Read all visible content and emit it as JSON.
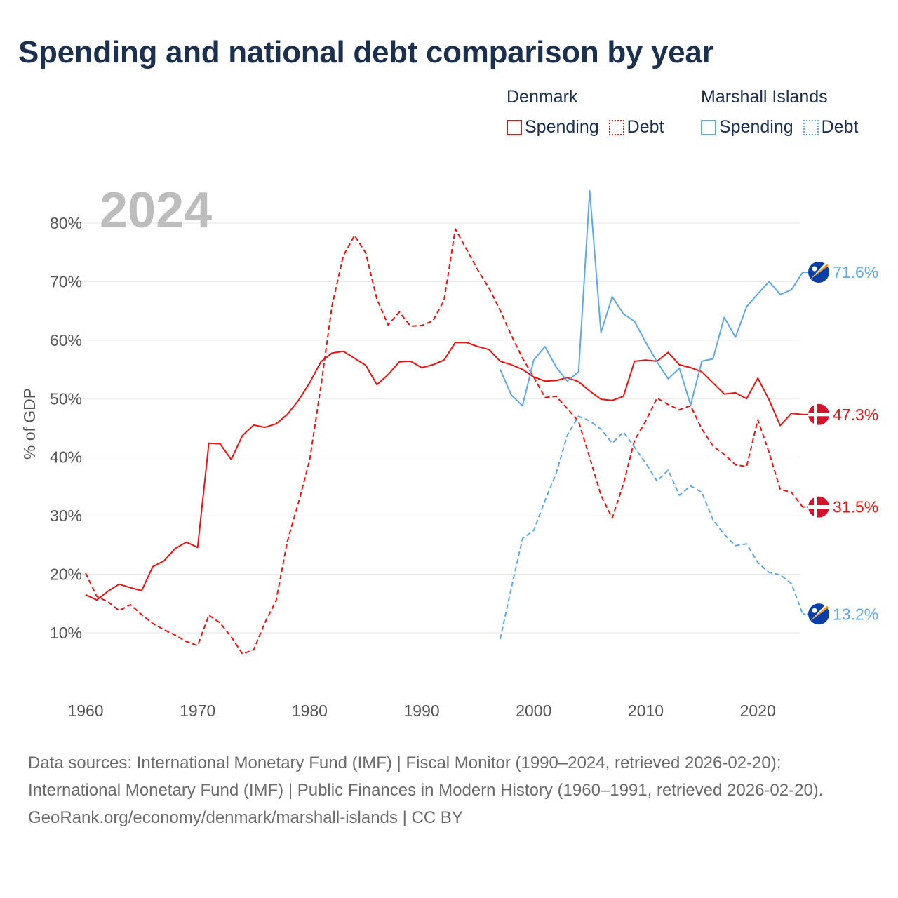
{
  "title": "Spending and national debt comparison by year",
  "legend": [
    {
      "country": "Denmark",
      "items": [
        {
          "label": "Spending",
          "style": "solid"
        },
        {
          "label": "Debt",
          "style": "dashed"
        }
      ],
      "color": "#ee1111"
    },
    {
      "country": "Marshall Islands",
      "items": [
        {
          "label": "Spending",
          "style": "solid"
        },
        {
          "label": "Debt",
          "style": "dashed"
        }
      ],
      "color": "#5ea8e8"
    }
  ],
  "year_label": "2024",
  "footer": {
    "sources": "Data sources: International Monetary Fund (IMF) | Fiscal Monitor (1990–2024, retrieved 2026-02-20); International Monetary Fund (IMF) | Public Finances in Modern History (1960–1991, retrieved 2026-02-20).",
    "credit": "GeoRank.org/economy/denmark/marshall-islands | CC BY"
  },
  "chart_data": {
    "type": "line",
    "title": "Spending and national debt comparison by year",
    "xlabel": "",
    "ylabel": "% of GDP",
    "xlim": [
      1960,
      2024
    ],
    "ylim": [
      0,
      85
    ],
    "x_ticks": [
      1960,
      1970,
      1980,
      1990,
      2000,
      2010,
      2020
    ],
    "y_ticks": [
      10,
      20,
      30,
      40,
      50,
      60,
      70,
      80
    ],
    "y_tick_labels": [
      "10%",
      "20%",
      "30%",
      "40%",
      "50%",
      "60%",
      "70%",
      "80%"
    ],
    "grid": true,
    "series": [
      {
        "name": "Denmark Spending",
        "color": "#ee1111",
        "dash": false,
        "flag": "denmark",
        "end_label": "47.3%",
        "start": 1960,
        "values": [
          16.5,
          15.6,
          17.1,
          18.3,
          17.7,
          17.2,
          21.3,
          22.3,
          24.4,
          25.5,
          24.6,
          42.4,
          42.3,
          39.6,
          43.7,
          45.5,
          45.1,
          45.7,
          47.3,
          49.7,
          52.7,
          56.3,
          57.8,
          58.1,
          56.9,
          55.7,
          52.4,
          54.1,
          56.3,
          56.4,
          55.3,
          55.8,
          56.6,
          59.6,
          59.6,
          58.9,
          58.4,
          56.4,
          55.8,
          55.0,
          53.7,
          53.0,
          53.1,
          53.6,
          52.9,
          51.3,
          49.9,
          49.7,
          50.4,
          56.4,
          56.6,
          56.4,
          57.9,
          55.8,
          55.3,
          54.6,
          52.7,
          50.8,
          51.0,
          50.0,
          53.5,
          49.8,
          45.4,
          47.5,
          47.3
        ]
      },
      {
        "name": "Denmark Debt",
        "color": "#ee1111",
        "dash": true,
        "flag": "denmark",
        "end_label": "31.5%",
        "start": 1960,
        "values": [
          20.2,
          16.2,
          15.3,
          13.8,
          14.8,
          13.1,
          11.6,
          10.5,
          9.6,
          8.5,
          7.8,
          13.0,
          11.7,
          9.3,
          6.4,
          7.1,
          11.7,
          15.5,
          25.6,
          32.2,
          39.5,
          52.1,
          65.9,
          74.4,
          77.9,
          74.9,
          67.0,
          62.6,
          64.8,
          62.4,
          62.5,
          63.3,
          66.8,
          79.0,
          75.5,
          72.0,
          68.9,
          65.1,
          60.8,
          56.9,
          53.7,
          50.2,
          50.4,
          48.3,
          46.1,
          39.9,
          33.5,
          29.6,
          35.4,
          42.9,
          46.2,
          50.1,
          49.0,
          48.1,
          48.8,
          44.8,
          41.9,
          40.5,
          38.7,
          38.4,
          46.4,
          40.8,
          34.5,
          34.0,
          31.5
        ]
      },
      {
        "name": "Marshall Islands Spending",
        "color": "#5ea8e8",
        "dash": false,
        "flag": "marshall-islands",
        "end_label": "71.6%",
        "start": 1997,
        "values": [
          55.0,
          50.6,
          48.8,
          56.6,
          58.9,
          55.4,
          53.0,
          54.6,
          85.5,
          61.3,
          67.4,
          64.5,
          63.2,
          59.6,
          56.3,
          53.4,
          55.2,
          48.9,
          56.4,
          56.8,
          63.9,
          60.5,
          65.7,
          67.9,
          70.0,
          67.8,
          68.6,
          71.6
        ]
      },
      {
        "name": "Marshall Islands Debt",
        "color": "#5ea8e8",
        "dash": true,
        "flag": "marshall-islands",
        "end_label": "13.2%",
        "start": 1997,
        "values": [
          8.9,
          17.7,
          26.1,
          27.5,
          32.6,
          37.2,
          43.8,
          47.0,
          46.2,
          44.8,
          42.4,
          44.3,
          41.7,
          39.0,
          35.9,
          37.8,
          33.5,
          35.1,
          34.0,
          29.3,
          26.8,
          24.9,
          25.2,
          22.0,
          20.3,
          19.9,
          18.4,
          13.2
        ]
      }
    ]
  }
}
